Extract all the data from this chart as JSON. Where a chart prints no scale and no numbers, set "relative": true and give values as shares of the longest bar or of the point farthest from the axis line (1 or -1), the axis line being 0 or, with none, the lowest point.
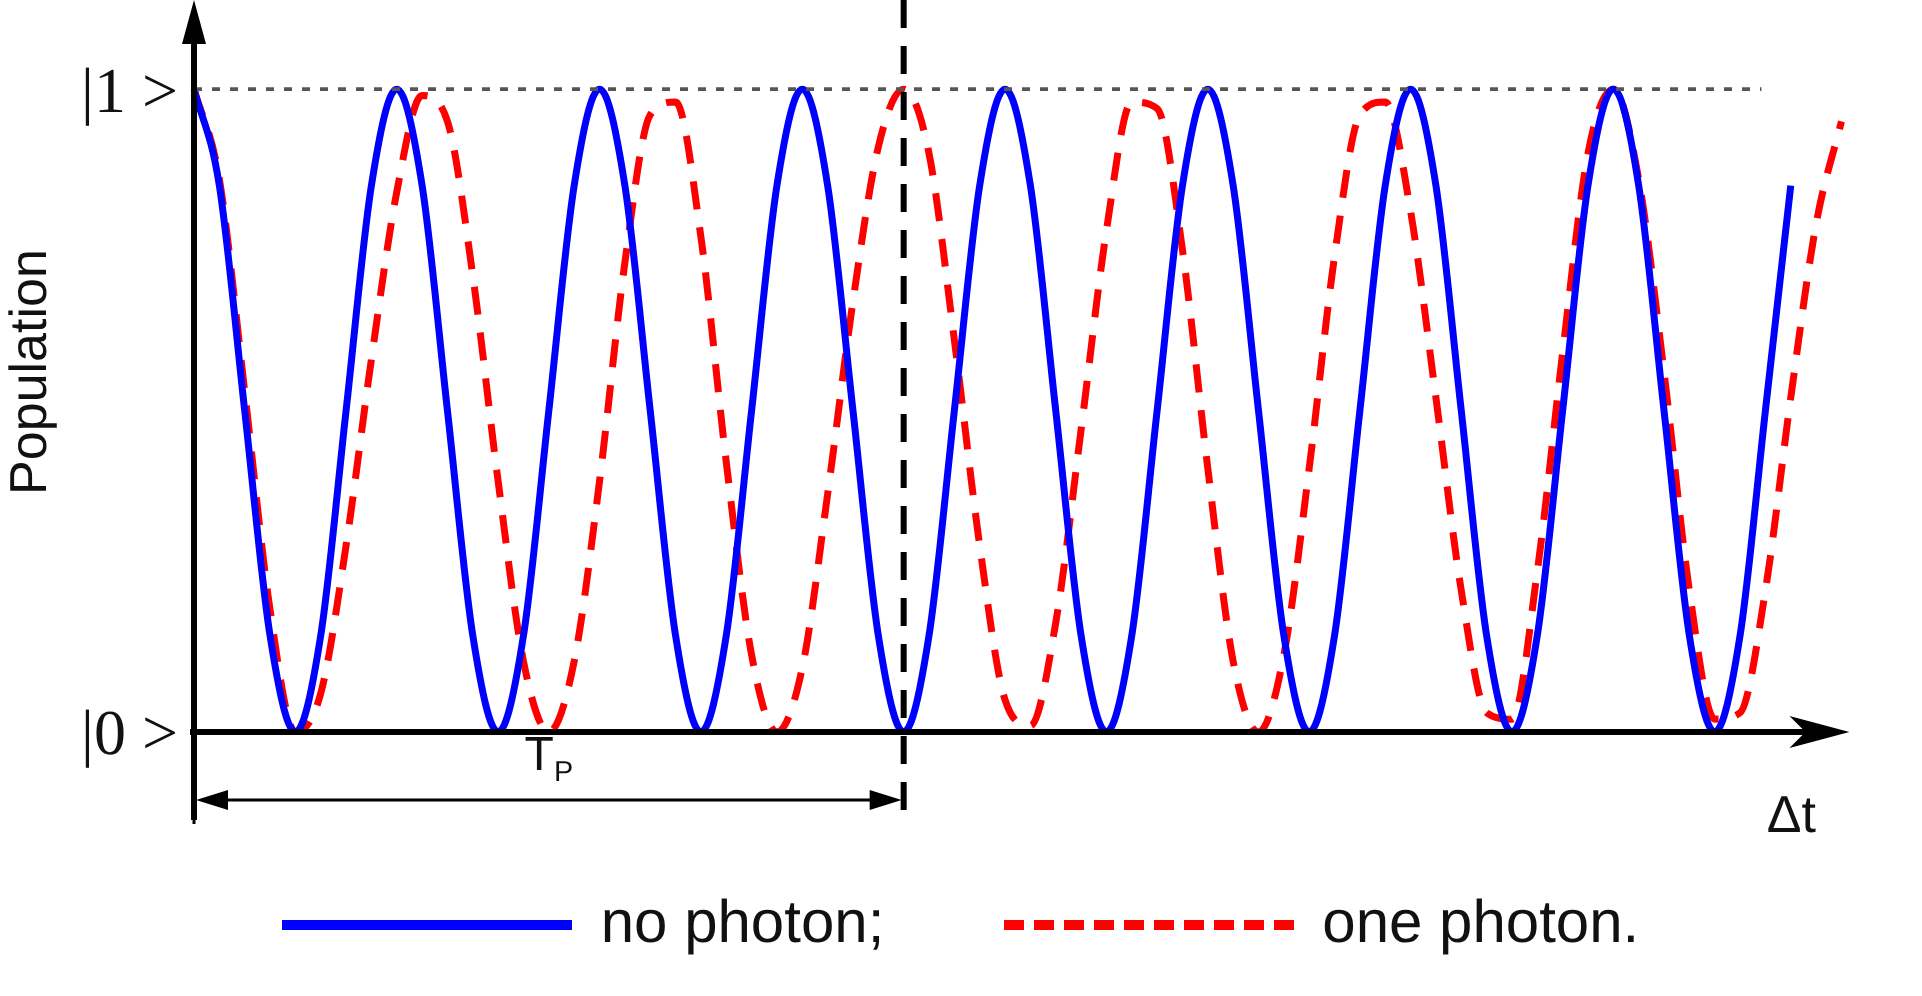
{
  "chart_data": {
    "type": "line",
    "xlabel": "Δt",
    "ylabel": "Population",
    "relative": true,
    "annotations": [
      "|1 >",
      "|0 >",
      "T$_{P}$"
    ],
    "grid": false,
    "legend": "bottom",
    "marker": "none",
    "categories": [
      null,
      null,
      null,
      null,
      null,
      null,
      null,
      null,
      null,
      null,
      null,
      null,
      null,
      null,
      null,
      null,
      null,
      null,
      null,
      null,
      null,
      null,
      null,
      null,
      null,
      null,
      null,
      null,
      null,
      null,
      null,
      null,
      null,
      null,
      null,
      null,
      null,
      null,
      null,
      null,
      null,
      null,
      null,
      null,
      null,
      null,
      null,
      null,
      null,
      null,
      null,
      null,
      null,
      null,
      null,
      null,
      null,
      null,
      null,
      null,
      null,
      null,
      null,
      null,
      null,
      null
    ],
    "series": [
      {
        "name": "no photon;",
        "color": "#0000ff",
        "line_style": "solid",
        "values": [
          1,
          0.85,
          0.5,
          0.15,
          0,
          0.15,
          0.5,
          0.85,
          1,
          0.85,
          0.5,
          0.15,
          0,
          0.15,
          0.5,
          0.85,
          1,
          0.85,
          0.5,
          0.15,
          0,
          0.15,
          0.5,
          0.85,
          1,
          0.85,
          0.5,
          0.15,
          0,
          0.15,
          0.5,
          0.85,
          1,
          0.85,
          0.5,
          0.15,
          0,
          0.15,
          0.5,
          0.85,
          1,
          0.85,
          0.5,
          0.15,
          0,
          0.15,
          0.5,
          0.85,
          1,
          0.85,
          0.5,
          0.15,
          0,
          0.15,
          0.5,
          0.85,
          1,
          0.85,
          0.5,
          0.15,
          0,
          0.15,
          0.5,
          0.85,
          null,
          null
        ]
      },
      {
        "name": "one photon.",
        "color": "#ff0000",
        "line_style": "dashed",
        "values": [
          1,
          0.86,
          0.53,
          0.19,
          0,
          0.06,
          0.29,
          0.58,
          0.84,
          0.99,
          0.95,
          0.71,
          0.39,
          0.11,
          0,
          0.11,
          0.39,
          0.73,
          0.96,
          0.98,
          0.77,
          0.42,
          0.12,
          0,
          0.1,
          0.37,
          0.67,
          0.91,
          1,
          0.9,
          0.61,
          0.29,
          0.05,
          0.01,
          0.17,
          0.47,
          0.78,
          0.98,
          0.97,
          0.75,
          0.41,
          0.11,
          0,
          0.12,
          0.41,
          0.74,
          0.96,
          0.98,
          0.81,
          0.52,
          0.22,
          0.03,
          0.02,
          0.25,
          0.59,
          0.9,
          1,
          0.86,
          0.56,
          0.22,
          0.02,
          0.03,
          0.22,
          0.52,
          0.79,
          0.95
        ]
      }
    ],
    "ref_lines": [
      {
        "axis": "y",
        "value": 1,
        "color": "#555555",
        "line_style": "dotted"
      }
    ]
  }
}
